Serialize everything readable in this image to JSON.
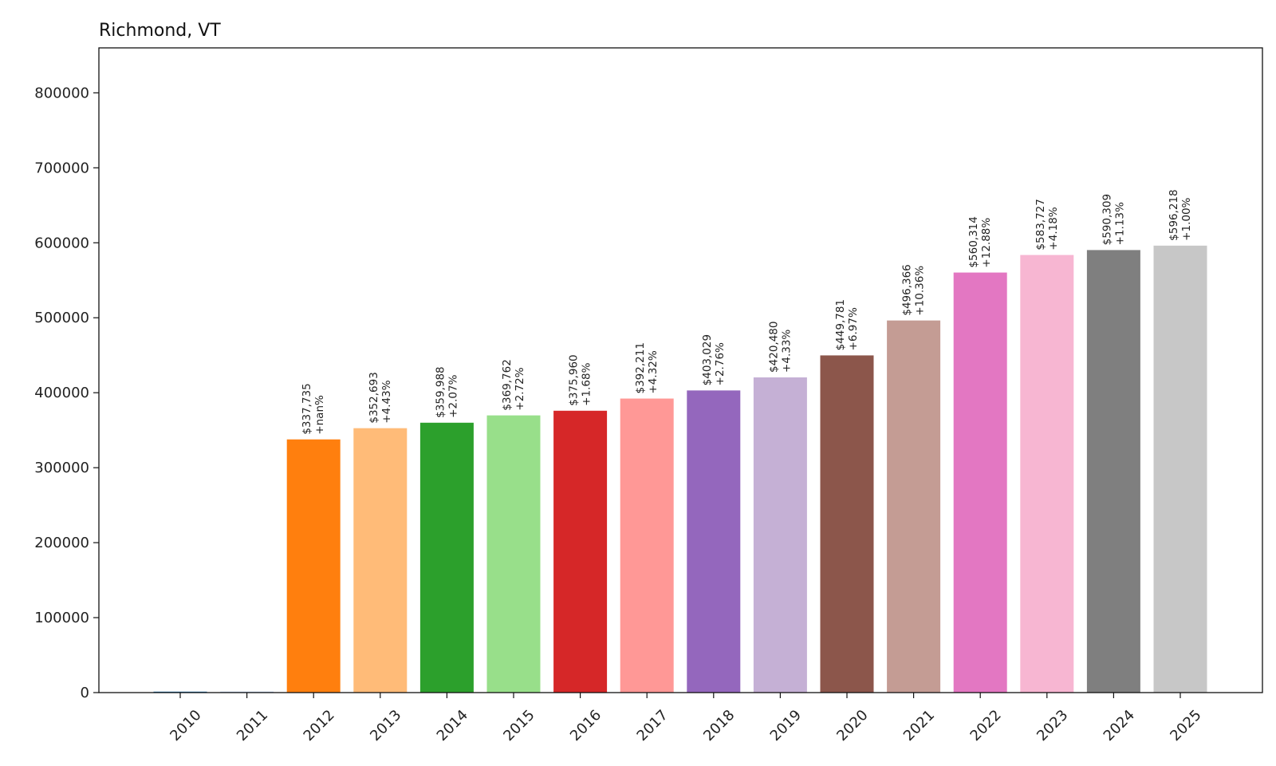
{
  "chart_data": {
    "type": "bar",
    "title": "Richmond, VT",
    "xlabel": "",
    "ylabel": "",
    "ylim": [
      0,
      860000
    ],
    "yticks": [
      0,
      100000,
      200000,
      300000,
      400000,
      500000,
      600000,
      700000,
      800000
    ],
    "ytick_labels": [
      "0",
      "100000",
      "200000",
      "300000",
      "400000",
      "500000",
      "600000",
      "700000",
      "800000"
    ],
    "categories": [
      "2010",
      "2011",
      "2012",
      "2013",
      "2014",
      "2015",
      "2016",
      "2017",
      "2018",
      "2019",
      "2020",
      "2021",
      "2022",
      "2023",
      "2024",
      "2025"
    ],
    "values": [
      0,
      0,
      337735,
      352693,
      359988,
      369762,
      375960,
      392211,
      403029,
      420480,
      449781,
      496366,
      560314,
      583727,
      590309,
      596218
    ],
    "value_labels": [
      "",
      "",
      "$337,735",
      "$352,693",
      "$359,988",
      "$369,762",
      "$375,960",
      "$392,211",
      "$403,029",
      "$420,480",
      "$449,781",
      "$496,366",
      "$560,314",
      "$583,727",
      "$590,309",
      "$596,218"
    ],
    "change_labels": [
      "",
      "",
      "+nan%",
      "+4.43%",
      "+2.07%",
      "+2.72%",
      "+1.68%",
      "+4.32%",
      "+2.76%",
      "+4.33%",
      "+6.97%",
      "+10.36%",
      "+12.88%",
      "+4.18%",
      "+1.13%",
      "+1.00%"
    ],
    "colors": [
      "#1f77b4",
      "#aec7e8",
      "#ff7f0e",
      "#ffbb78",
      "#2ca02c",
      "#98df8a",
      "#d62728",
      "#ff9896",
      "#9467bd",
      "#c5b0d5",
      "#8c564b",
      "#c49c94",
      "#e377c2",
      "#f7b6d2",
      "#7f7f7f",
      "#c7c7c7"
    ],
    "grid": false,
    "legend": "none"
  }
}
